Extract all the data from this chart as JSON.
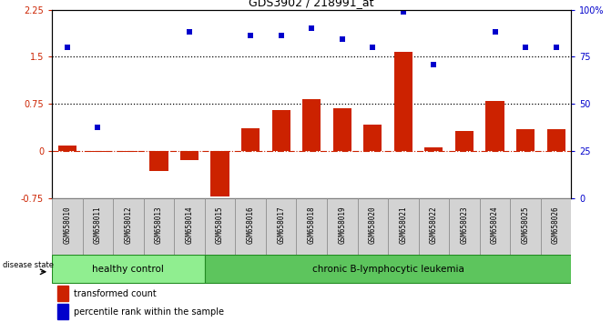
{
  "title": "GDS3902 / 218991_at",
  "samples": [
    "GSM658010",
    "GSM658011",
    "GSM658012",
    "GSM658013",
    "GSM658014",
    "GSM658015",
    "GSM658016",
    "GSM658017",
    "GSM658018",
    "GSM658019",
    "GSM658020",
    "GSM658021",
    "GSM658022",
    "GSM658023",
    "GSM658024",
    "GSM658025",
    "GSM658026"
  ],
  "transformed_count": [
    0.09,
    -0.02,
    -0.01,
    -0.32,
    -0.15,
    -0.72,
    0.36,
    0.65,
    0.82,
    0.68,
    0.42,
    1.58,
    0.06,
    0.32,
    0.8,
    0.35,
    0.35
  ],
  "percentile_rank_left": [
    1.65,
    0.38,
    null,
    null,
    1.9,
    null,
    1.84,
    1.84,
    1.95,
    1.78,
    1.65,
    2.22,
    1.38,
    null,
    1.9,
    1.65,
    1.65
  ],
  "healthy_control_count": 5,
  "group_labels": [
    "healthy control",
    "chronic B-lymphocytic leukemia"
  ],
  "bar_color": "#cc2200",
  "dot_color": "#0000cc",
  "zero_line_color": "#cc2200",
  "hline1": 1.5,
  "hline2": 0.75,
  "ylim_left": [
    -0.75,
    2.25
  ],
  "ylim_right": [
    0,
    100
  ],
  "right_ticks": [
    0,
    25,
    50,
    75,
    100
  ],
  "right_tick_labels": [
    "0",
    "25",
    "50",
    "75",
    "100%"
  ],
  "left_ticks": [
    -0.75,
    0,
    0.75,
    1.5,
    2.25
  ],
  "left_tick_labels": [
    "-0.75",
    "0",
    "0.75",
    "1.5",
    "2.25"
  ],
  "disease_label": "disease state",
  "legend_items": [
    "transformed count",
    "percentile rank within the sample"
  ],
  "figsize": [
    6.71,
    3.54
  ],
  "dpi": 100
}
